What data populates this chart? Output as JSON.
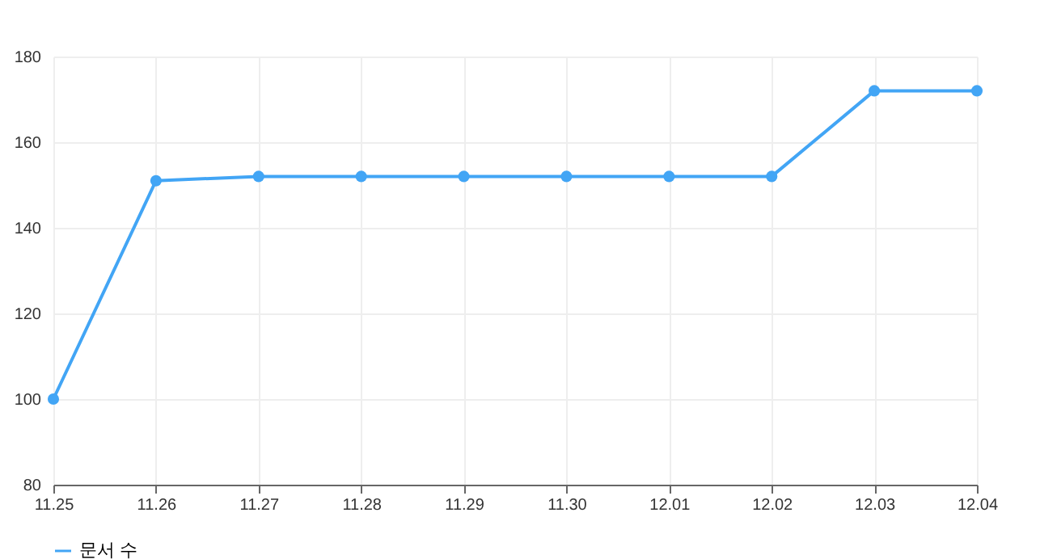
{
  "chart_data": {
    "type": "line",
    "categories": [
      "11.25",
      "11.26",
      "11.27",
      "11.28",
      "11.29",
      "11.30",
      "12.01",
      "12.02",
      "12.03",
      "12.04"
    ],
    "series": [
      {
        "name": "문서 수",
        "color": "#42a5f5",
        "values": [
          100,
          151,
          152,
          152,
          152,
          152,
          152,
          152,
          172,
          172
        ]
      }
    ],
    "ylim": [
      80,
      180
    ],
    "yticks": [
      80,
      100,
      120,
      140,
      160,
      180
    ],
    "grid": true,
    "legend": "bottom",
    "marker": "circle",
    "line_style": "solid"
  }
}
